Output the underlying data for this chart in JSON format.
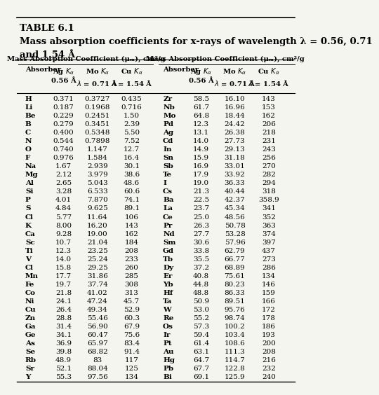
{
  "title_line1": "TABLE 6.1",
  "title_line2": "Mass absorption coefficients for x-rays of wavelength λ = 0.56, 0.71",
  "title_line3": "and 1.54 Å",
  "col_header_span": "Mass Absorption Coefficient (μₘ), cm²/g",
  "left_data": [
    [
      "H",
      "0.371",
      "0.3727",
      "0.435"
    ],
    [
      "Li",
      "0.187",
      "0.1968",
      "0.716"
    ],
    [
      "Be",
      "0.229",
      "0.2451",
      "1.50"
    ],
    [
      "B",
      "0.279",
      "0.3451",
      "2.39"
    ],
    [
      "C",
      "0.400",
      "0.5348",
      "5.50"
    ],
    [
      "N",
      "0.544",
      "0.7898",
      "7.52"
    ],
    [
      "O",
      "0.740",
      "1.147",
      "12.7"
    ],
    [
      "F",
      "0.976",
      "1.584",
      "16.4"
    ],
    [
      "Na",
      "1.67",
      "2.939",
      "30.1"
    ],
    [
      "Mg",
      "2.12",
      "3.979",
      "38.6"
    ],
    [
      "Al",
      "2.65",
      "5.043",
      "48.6"
    ],
    [
      "Si",
      "3.28",
      "6.533",
      "60.6"
    ],
    [
      "P",
      "4.01",
      "7.870",
      "74.1"
    ],
    [
      "S",
      "4.84",
      "9.625",
      "89.1"
    ],
    [
      "Cl",
      "5.77",
      "11.64",
      "106"
    ],
    [
      "K",
      "8.00",
      "16.20",
      "143"
    ],
    [
      "Ca",
      "9.28",
      "19.00",
      "162"
    ],
    [
      "Sc",
      "10.7",
      "21.04",
      "184"
    ],
    [
      "Ti",
      "12.3",
      "23.25",
      "208"
    ],
    [
      "V",
      "14.0",
      "25.24",
      "233"
    ],
    [
      "Cl",
      "15.8",
      "29.25",
      "260"
    ],
    [
      "Mn",
      "17.7",
      "31.86",
      "285"
    ],
    [
      "Fe",
      "19.7",
      "37.74",
      "308"
    ],
    [
      "Co",
      "21.8",
      "41.02",
      "313"
    ],
    [
      "Ni",
      "24.1",
      "47.24",
      "45.7"
    ],
    [
      "Cu",
      "26.4",
      "49.34",
      "52.9"
    ],
    [
      "Zn",
      "28.8",
      "55.46",
      "60.3"
    ],
    [
      "Ga",
      "31.4",
      "56.90",
      "67.9"
    ],
    [
      "Ge",
      "34.1",
      "60.47",
      "75.6"
    ],
    [
      "As",
      "36.9",
      "65.97",
      "83.4"
    ],
    [
      "Se",
      "39.8",
      "68.82",
      "91.4"
    ],
    [
      "Rb",
      "48.9",
      "83",
      "117"
    ],
    [
      "Sr",
      "52.1",
      "88.04",
      "125"
    ],
    [
      "Y",
      "55.3",
      "97.56",
      "134"
    ]
  ],
  "right_data": [
    [
      "Zr",
      "58.5",
      "16.10",
      "143"
    ],
    [
      "Nb",
      "61.7",
      "16.96",
      "153"
    ],
    [
      "Mo",
      "64.8",
      "18.44",
      "162"
    ],
    [
      "Pd",
      "12.3",
      "24.42",
      "206"
    ],
    [
      "Ag",
      "13.1",
      "26.38",
      "218"
    ],
    [
      "Cd",
      "14.0",
      "27.73",
      "231"
    ],
    [
      "In",
      "14.9",
      "29.13",
      "243"
    ],
    [
      "Sn",
      "15.9",
      "31.18",
      "256"
    ],
    [
      "Sb",
      "16.9",
      "33.01",
      "270"
    ],
    [
      "Te",
      "17.9",
      "33.92",
      "282"
    ],
    [
      "I",
      "19.0",
      "36.33",
      "294"
    ],
    [
      "Cs",
      "21.3",
      "40.44",
      "318"
    ],
    [
      "Ba",
      "22.5",
      "42.37",
      "358.9"
    ],
    [
      "La",
      "23.7",
      "45.34",
      "341"
    ],
    [
      "Ce",
      "25.0",
      "48.56",
      "352"
    ],
    [
      "Pr",
      "26.3",
      "50.78",
      "363"
    ],
    [
      "Nd",
      "27.7",
      "53.28",
      "374"
    ],
    [
      "Sm",
      "30.6",
      "57.96",
      "397"
    ],
    [
      "Gd",
      "33.8",
      "62.79",
      "437"
    ],
    [
      "Tb",
      "35.5",
      "66.77",
      "273"
    ],
    [
      "Dy",
      "37.2",
      "68.89",
      "286"
    ],
    [
      "Er",
      "40.8",
      "75.61",
      "134"
    ],
    [
      "Yb",
      "44.8",
      "80.23",
      "146"
    ],
    [
      "Hf",
      "48.8",
      "86.33",
      "159"
    ],
    [
      "Ta",
      "50.9",
      "89.51",
      "166"
    ],
    [
      "W",
      "53.0",
      "95.76",
      "172"
    ],
    [
      "Re",
      "55.2",
      "98.74",
      "178"
    ],
    [
      "Os",
      "57.3",
      "100.2",
      "186"
    ],
    [
      "Ir",
      "59.4",
      "103.4",
      "193"
    ],
    [
      "Pt",
      "61.4",
      "108.6",
      "200"
    ],
    [
      "Au",
      "63.1",
      "111.3",
      "208"
    ],
    [
      "Hg",
      "64.7",
      "114.7",
      "216"
    ],
    [
      "Pb",
      "67.7",
      "122.8",
      "232"
    ],
    [
      "Bi",
      "69.1",
      "125.9",
      "240"
    ]
  ],
  "bg_color": "#f5f5f0",
  "text_color": "#000000",
  "title_fontsize": 9.5,
  "data_fontsize": 7.5,
  "header_fontsize": 7.2
}
